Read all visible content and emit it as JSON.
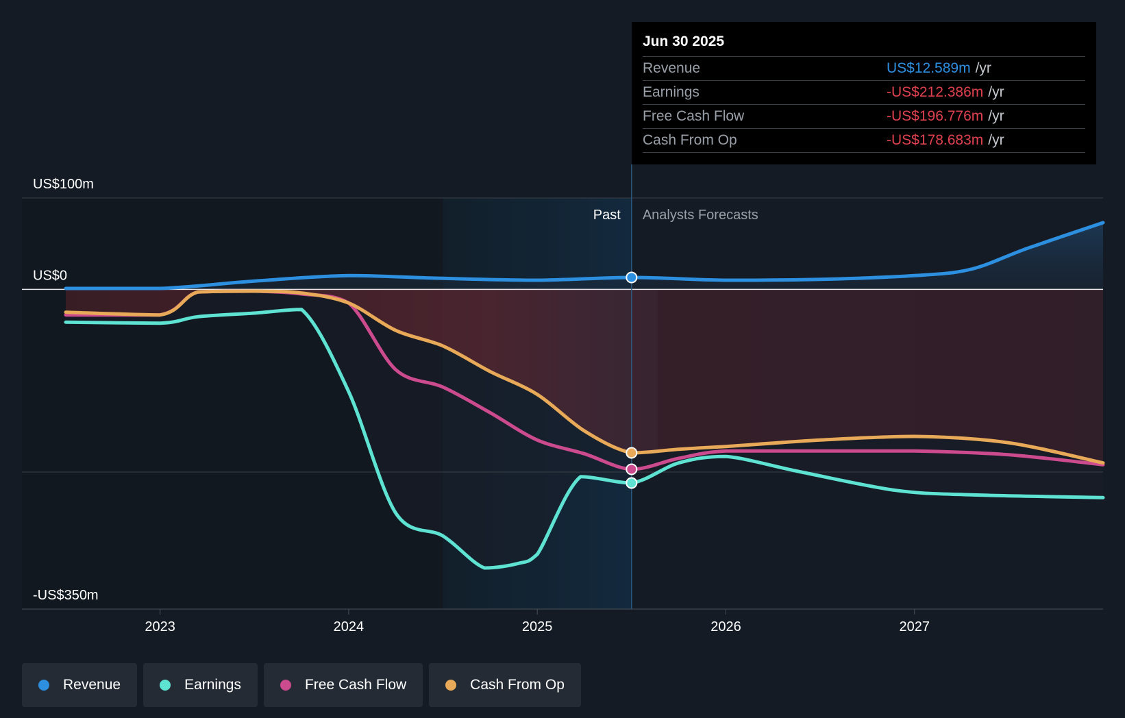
{
  "chart_data": {
    "type": "line",
    "title": "",
    "y_unit": "US$m",
    "ylim": [
      -350,
      100
    ],
    "y_labels": [
      {
        "value": 100,
        "text": "US$100m"
      },
      {
        "value": 0,
        "text": "US$0"
      },
      {
        "value": -350,
        "text": "-US$350m"
      }
    ],
    "xlim": [
      2022.5,
      2028.0
    ],
    "x_ticks": [
      {
        "value": 2023,
        "text": "2023"
      },
      {
        "value": 2024,
        "text": "2024"
      },
      {
        "value": 2025,
        "text": "2025"
      },
      {
        "value": 2026,
        "text": "2026"
      },
      {
        "value": 2027,
        "text": "2027"
      }
    ],
    "highlight_start": 2024.5,
    "divider_x": 2025.5,
    "past_label": "Past",
    "forecast_label": "Analysts Forecasts",
    "series": [
      {
        "name": "Revenue",
        "color": "#2d8fe0",
        "points": [
          [
            2022.5,
            1
          ],
          [
            2023.0,
            1
          ],
          [
            2023.5,
            9
          ],
          [
            2024.0,
            15
          ],
          [
            2024.5,
            12
          ],
          [
            2025.0,
            10
          ],
          [
            2025.5,
            13
          ],
          [
            2026.0,
            10
          ],
          [
            2026.5,
            11
          ],
          [
            2027.0,
            15
          ],
          [
            2027.3,
            22
          ],
          [
            2027.6,
            45
          ],
          [
            2028.0,
            73
          ]
        ]
      },
      {
        "name": "Earnings",
        "color": "#5ee2d2",
        "points": [
          [
            2022.5,
            -36
          ],
          [
            2023.0,
            -37
          ],
          [
            2023.2,
            -30
          ],
          [
            2023.5,
            -26
          ],
          [
            2023.75,
            -22
          ],
          [
            2024.0,
            -112
          ],
          [
            2024.25,
            -245
          ],
          [
            2024.5,
            -270
          ],
          [
            2024.72,
            -305
          ],
          [
            2024.9,
            -300
          ],
          [
            2025.0,
            -290
          ],
          [
            2025.23,
            -205
          ],
          [
            2025.5,
            -212
          ],
          [
            2025.75,
            -190
          ],
          [
            2026.0,
            -183
          ],
          [
            2026.4,
            -200
          ],
          [
            2026.9,
            -220
          ],
          [
            2027.3,
            -225
          ],
          [
            2028.0,
            -228
          ]
        ]
      },
      {
        "name": "Free Cash Flow",
        "color": "#cc4a8e",
        "points": [
          [
            2022.5,
            -28
          ],
          [
            2023.0,
            -28
          ],
          [
            2023.2,
            -3
          ],
          [
            2023.5,
            -2
          ],
          [
            2023.75,
            -5
          ],
          [
            2024.0,
            -15
          ],
          [
            2024.25,
            -88
          ],
          [
            2024.5,
            -107
          ],
          [
            2024.75,
            -135
          ],
          [
            2025.0,
            -165
          ],
          [
            2025.25,
            -180
          ],
          [
            2025.5,
            -197
          ],
          [
            2025.75,
            -185
          ],
          [
            2026.0,
            -177
          ],
          [
            2026.5,
            -177
          ],
          [
            2027.0,
            -177
          ],
          [
            2027.5,
            -181
          ],
          [
            2028.0,
            -192
          ]
        ]
      },
      {
        "name": "Cash From Op",
        "color": "#e8a958",
        "points": [
          [
            2022.5,
            -25
          ],
          [
            2023.0,
            -28
          ],
          [
            2023.2,
            -3
          ],
          [
            2023.5,
            -2
          ],
          [
            2023.75,
            -4
          ],
          [
            2024.0,
            -15
          ],
          [
            2024.25,
            -45
          ],
          [
            2024.5,
            -62
          ],
          [
            2024.75,
            -90
          ],
          [
            2025.0,
            -115
          ],
          [
            2025.25,
            -155
          ],
          [
            2025.5,
            -179
          ],
          [
            2025.75,
            -175
          ],
          [
            2026.0,
            -172
          ],
          [
            2026.5,
            -165
          ],
          [
            2027.0,
            -161
          ],
          [
            2027.5,
            -168
          ],
          [
            2028.0,
            -190
          ]
        ]
      }
    ],
    "tooltip": {
      "date": "Jun 30 2025",
      "rows": [
        {
          "label": "Revenue",
          "value": "US$12.589m",
          "unit": "/yr",
          "color": "#2d8fe0"
        },
        {
          "label": "Earnings",
          "value": "-US$212.386m",
          "unit": "/yr",
          "color": "#e0414f"
        },
        {
          "label": "Free Cash Flow",
          "value": "-US$196.776m",
          "unit": "/yr",
          "color": "#e0414f"
        },
        {
          "label": "Cash From Op",
          "value": "-US$178.683m",
          "unit": "/yr",
          "color": "#e0414f"
        }
      ]
    }
  },
  "legend": [
    {
      "label": "Revenue",
      "color": "#2d8fe0"
    },
    {
      "label": "Earnings",
      "color": "#5ee2d2"
    },
    {
      "label": "Free Cash Flow",
      "color": "#cc4a8e"
    },
    {
      "label": "Cash From Op",
      "color": "#e8a958"
    }
  ]
}
